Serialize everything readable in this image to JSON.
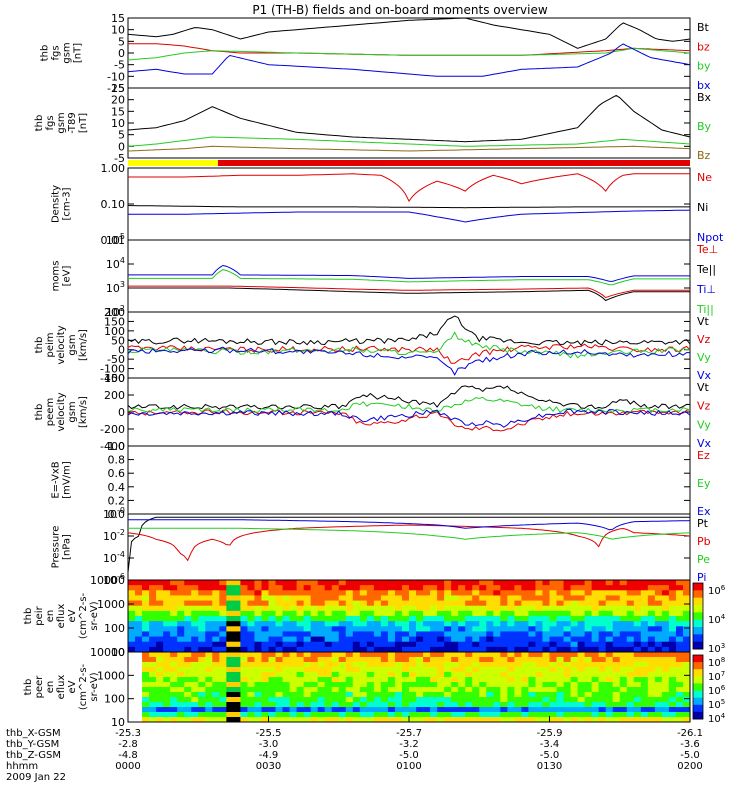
{
  "title": "P1 (TH-B) fields and on-board moments overview",
  "colors": {
    "black": "#000000",
    "red": "#e00000",
    "green": "#22cc22",
    "blue": "#0000dd",
    "yellow": "#ffff00",
    "olive": "#8b6914"
  },
  "chart_data": [
    {
      "type": "line",
      "ylabel": [
        "thb",
        "fgs",
        "gsm",
        "[nT]"
      ],
      "ylim": [
        -15,
        15
      ],
      "yticks": [
        "15",
        "10",
        "5",
        "0",
        "-5",
        "-10",
        "-15"
      ],
      "series": [
        {
          "name": "Bt",
          "color": "black",
          "x": [
            0,
            0.05,
            0.08,
            0.12,
            0.15,
            0.2,
            0.25,
            0.3,
            0.4,
            0.5,
            0.6,
            0.65,
            0.75,
            0.8,
            0.85,
            0.88,
            0.91,
            0.94,
            0.97,
            1.0
          ],
          "values": [
            8,
            7,
            8,
            11,
            10,
            6,
            9,
            10,
            12,
            14,
            15,
            12,
            8,
            2,
            6,
            13,
            10,
            6,
            5,
            6
          ]
        },
        {
          "name": "bz",
          "color": "red",
          "x": [
            0,
            0.05,
            0.1,
            0.15,
            0.2,
            0.3,
            0.5,
            0.7,
            0.85,
            0.9,
            1.0
          ],
          "values": [
            4,
            4,
            3,
            1,
            0,
            0,
            -1,
            -1,
            1,
            2,
            1
          ]
        },
        {
          "name": "by",
          "color": "green",
          "x": [
            0,
            0.05,
            0.1,
            0.15,
            0.3,
            0.5,
            0.7,
            0.85,
            0.9,
            1.0
          ],
          "values": [
            -3,
            -2,
            0,
            1,
            0,
            -1,
            -1,
            0,
            2,
            0
          ]
        },
        {
          "name": "bx",
          "color": "blue",
          "x": [
            0,
            0.05,
            0.1,
            0.15,
            0.18,
            0.25,
            0.4,
            0.55,
            0.63,
            0.7,
            0.8,
            0.86,
            0.88,
            0.93,
            1.0
          ],
          "values": [
            -8,
            -7,
            -9,
            -9,
            -1,
            -5,
            -7,
            -10,
            -10,
            -7,
            -6,
            0,
            4,
            -2,
            -5
          ]
        }
      ]
    },
    {
      "type": "line",
      "ylabel": [
        "thb",
        "fgs",
        "gsm",
        "-T89",
        "[nT]"
      ],
      "ylim": [
        -5,
        25
      ],
      "yticks": [
        "25",
        "20",
        "15",
        "10",
        "5",
        "0",
        "-5"
      ],
      "series": [
        {
          "name": "Bx",
          "color": "black",
          "x": [
            0,
            0.05,
            0.1,
            0.15,
            0.2,
            0.3,
            0.4,
            0.5,
            0.6,
            0.7,
            0.8,
            0.84,
            0.87,
            0.9,
            0.95,
            1.0
          ],
          "values": [
            7,
            8,
            11,
            17,
            12,
            6,
            4,
            3,
            2,
            3,
            8,
            18,
            22,
            15,
            7,
            4
          ]
        },
        {
          "name": "By",
          "color": "green",
          "x": [
            0,
            0.05,
            0.15,
            0.3,
            0.5,
            0.6,
            0.8,
            0.88,
            1.0
          ],
          "values": [
            0,
            1,
            4,
            3,
            1,
            0,
            1,
            3,
            1
          ]
        },
        {
          "name": "Bz",
          "color": "olive",
          "x": [
            0,
            0.1,
            0.15,
            0.3,
            0.5,
            0.7,
            0.9,
            1.0
          ],
          "values": [
            -2,
            -1,
            0,
            -1,
            -2,
            -1,
            0,
            -1
          ]
        }
      ]
    },
    {
      "type": "line",
      "ylabel": [
        "Density",
        "[cm-3]"
      ],
      "yscale": "log",
      "ylim": [
        0.01,
        1.5
      ],
      "yticks": [
        "1.00",
        "0.10",
        "0.01"
      ],
      "series": [
        {
          "name": "Ne",
          "color": "red",
          "x": [
            0,
            0.1,
            0.2,
            0.3,
            0.4,
            0.45,
            0.5,
            0.55,
            0.6,
            0.65,
            0.7,
            0.8,
            0.85,
            0.88,
            0.9,
            1.0
          ],
          "values": [
            0.8,
            0.8,
            0.9,
            0.9,
            1.0,
            0.9,
            0.15,
            0.6,
            0.3,
            0.9,
            0.5,
            1.0,
            0.3,
            0.9,
            1.0,
            1.0
          ]
        },
        {
          "name": "Ni",
          "color": "black",
          "x": [
            0,
            0.2,
            0.4,
            0.6,
            0.8,
            1.0
          ],
          "values": [
            0.11,
            0.1,
            0.1,
            0.095,
            0.1,
            0.1
          ]
        },
        {
          "name": "Npot",
          "color": "blue",
          "x": [
            0,
            0.1,
            0.3,
            0.5,
            0.55,
            0.6,
            0.7,
            0.9,
            1.0
          ],
          "values": [
            0.06,
            0.06,
            0.07,
            0.07,
            0.05,
            0.035,
            0.06,
            0.075,
            0.08
          ]
        }
      ]
    },
    {
      "type": "line",
      "ylabel": [
        "moms",
        "[eV]"
      ],
      "yscale": "log",
      "ylim": [
        100,
        100000
      ],
      "yticks": [
        "10^5",
        "10^4",
        "10^3",
        "10^2"
      ],
      "series": [
        {
          "name": "Te⊥",
          "color": "red",
          "x": [
            0,
            0.15,
            0.18,
            0.4,
            0.5,
            0.7,
            0.82,
            0.85,
            0.9,
            1.0
          ],
          "values": [
            1200,
            1200,
            1200,
            900,
            800,
            900,
            1000,
            400,
            800,
            800
          ]
        },
        {
          "name": "Te||",
          "color": "black",
          "x": [
            0,
            0.15,
            0.18,
            0.4,
            0.5,
            0.7,
            0.82,
            0.85,
            0.9,
            1.0
          ],
          "values": [
            1000,
            1000,
            1000,
            700,
            600,
            700,
            800,
            300,
            700,
            700
          ]
        },
        {
          "name": "Ti⊥",
          "color": "blue",
          "x": [
            0,
            0.15,
            0.17,
            0.2,
            0.4,
            0.5,
            0.7,
            0.82,
            0.86,
            0.9,
            1.0
          ],
          "values": [
            3500,
            3500,
            9000,
            3500,
            3300,
            2500,
            3000,
            3000,
            1800,
            3200,
            3200
          ]
        },
        {
          "name": "Ti||",
          "color": "green",
          "x": [
            0,
            0.15,
            0.17,
            0.2,
            0.4,
            0.5,
            0.7,
            0.82,
            0.86,
            0.9,
            1.0
          ],
          "values": [
            2500,
            2500,
            6000,
            2500,
            2300,
            1800,
            2200,
            2200,
            1300,
            2400,
            2400
          ]
        }
      ]
    },
    {
      "type": "line",
      "ylabel": [
        "thb",
        "peim",
        "velocity",
        "gsm",
        "[km/s]"
      ],
      "ylim": [
        -150,
        200
      ],
      "yticks": [
        "200",
        "150",
        "100",
        "50",
        "0",
        "-50",
        "-100",
        "-150"
      ],
      "series": [
        {
          "name": "Vt",
          "color": "black",
          "x": [
            0,
            0.1,
            0.2,
            0.3,
            0.4,
            0.5,
            0.55,
            0.58,
            0.62,
            0.7,
            0.8,
            0.9,
            1.0
          ],
          "values": [
            40,
            50,
            45,
            40,
            45,
            50,
            90,
            180,
            60,
            40,
            35,
            40,
            45
          ]
        },
        {
          "name": "Vz",
          "color": "red",
          "x": [
            0,
            0.2,
            0.4,
            0.55,
            0.58,
            0.62,
            0.7,
            0.8,
            0.9,
            1.0
          ],
          "values": [
            10,
            0,
            5,
            0,
            -80,
            -20,
            10,
            20,
            0,
            5
          ]
        },
        {
          "name": "Vy",
          "color": "green",
          "x": [
            0,
            0.2,
            0.4,
            0.55,
            0.58,
            0.62,
            0.7,
            0.8,
            0.9,
            1.0
          ],
          "values": [
            0,
            -10,
            0,
            -20,
            80,
            20,
            -10,
            -30,
            -10,
            0
          ]
        },
        {
          "name": "Vx",
          "color": "blue",
          "x": [
            0,
            0.2,
            0.4,
            0.55,
            0.58,
            0.62,
            0.7,
            0.8,
            0.9,
            1.0
          ],
          "values": [
            -10,
            0,
            -20,
            -50,
            -120,
            -60,
            -20,
            -10,
            -30,
            -20
          ]
        }
      ]
    },
    {
      "type": "line",
      "ylabel": [
        "thb",
        "peem",
        "velocity",
        "gsm",
        "[km/s]"
      ],
      "ylim": [
        -400,
        400
      ],
      "yticks": [
        "400",
        "200",
        "0",
        "-200",
        "-400"
      ],
      "series": [
        {
          "name": "Vt",
          "color": "black",
          "x": [
            0,
            0.2,
            0.38,
            0.42,
            0.48,
            0.55,
            0.6,
            0.63,
            0.67,
            0.72,
            0.78,
            0.85,
            0.88,
            0.92,
            1.0
          ],
          "values": [
            60,
            60,
            60,
            200,
            150,
            80,
            300,
            250,
            300,
            150,
            80,
            60,
            150,
            70,
            60
          ]
        },
        {
          "name": "Vz",
          "color": "red",
          "x": [
            0,
            0.2,
            0.38,
            0.42,
            0.48,
            0.55,
            0.6,
            0.63,
            0.67,
            0.72,
            0.78,
            0.85,
            1.0
          ],
          "values": [
            -10,
            0,
            -10,
            -150,
            -100,
            -20,
            -200,
            -180,
            -200,
            -100,
            -20,
            -10,
            0
          ]
        },
        {
          "name": "Vy",
          "color": "green",
          "x": [
            0,
            0.2,
            0.38,
            0.42,
            0.48,
            0.55,
            0.6,
            0.63,
            0.67,
            0.72,
            0.78,
            0.85,
            1.0
          ],
          "values": [
            30,
            20,
            30,
            100,
            80,
            20,
            120,
            150,
            120,
            60,
            20,
            20,
            30
          ]
        },
        {
          "name": "Vx",
          "color": "blue",
          "x": [
            0,
            0.2,
            0.38,
            0.42,
            0.48,
            0.55,
            0.6,
            0.63,
            0.67,
            0.72,
            0.78,
            0.85,
            1.0
          ],
          "values": [
            -20,
            -10,
            -20,
            -100,
            -50,
            10,
            -150,
            -120,
            -150,
            -60,
            10,
            0,
            -20
          ]
        }
      ]
    },
    {
      "type": "line",
      "ylabel": [
        "E=-VxB",
        "[mV/m]"
      ],
      "ylim": [
        0,
        1
      ],
      "yticks": [
        "1.0",
        "0.8",
        "0.6",
        "0.4",
        "0.2",
        "0.0"
      ],
      "series": [
        {
          "name": "Ez",
          "color": "red",
          "x": [],
          "values": []
        },
        {
          "name": "Ey",
          "color": "green",
          "x": [],
          "values": []
        },
        {
          "name": "Ex",
          "color": "blue",
          "x": [],
          "values": []
        }
      ]
    },
    {
      "type": "line",
      "ylabel": [
        "Pressure",
        "[nPa]"
      ],
      "yscale": "log",
      "ylim": [
        1e-06,
        1
      ],
      "yticks": [
        "10^-0",
        "10^-2",
        "10^-4",
        "10^-6"
      ],
      "series": [
        {
          "name": "Pt",
          "color": "black",
          "x": [
            0,
            0.02,
            0.05,
            0.1,
            0.5,
            1.0
          ],
          "values": [
            5e-06,
            0.01,
            0.5,
            0.5,
            0.5,
            0.5
          ]
        },
        {
          "name": "Pb",
          "color": "red",
          "x": [
            0,
            0.05,
            0.09,
            0.11,
            0.15,
            0.18,
            0.3,
            0.5,
            0.7,
            0.8,
            0.84,
            0.88,
            0.9,
            1.0
          ],
          "values": [
            0.02,
            0.005,
            0.0003,
            5e-06,
            0.005,
            0.001,
            0.05,
            0.1,
            0.05,
            0.01,
            0.0005,
            0.05,
            0.02,
            0.01
          ]
        },
        {
          "name": "Pe",
          "color": "green",
          "x": [
            0,
            0.2,
            0.4,
            0.55,
            0.6,
            0.8,
            0.86,
            1.0
          ],
          "values": [
            0.05,
            0.05,
            0.03,
            0.01,
            0.005,
            0.02,
            0.005,
            0.02
          ]
        },
        {
          "name": "Pi",
          "color": "blue",
          "x": [
            0,
            0.2,
            0.4,
            0.55,
            0.6,
            0.8,
            0.86,
            0.9,
            1.0
          ],
          "values": [
            0.3,
            0.3,
            0.2,
            0.1,
            0.05,
            0.15,
            0.03,
            0.2,
            0.25
          ]
        }
      ]
    },
    {
      "type": "heatmap",
      "ylabel": [
        "thb",
        "peir",
        "en",
        "eflux",
        "eV",
        "(cm^2-s-",
        "sr-eV)"
      ],
      "ylim": [
        10,
        10000
      ],
      "yticks": [
        "10000",
        "1000",
        "100",
        "10"
      ],
      "colorbar": {
        "min_exp": 3,
        "max_exp": 6,
        "labels": [
          "10^6",
          "10^4",
          "10^3"
        ]
      }
    },
    {
      "type": "heatmap",
      "ylabel": [
        "thb",
        "peer",
        "en",
        "eflux",
        "eV",
        "(cm^2-s-",
        "sr-eV)"
      ],
      "ylim": [
        10,
        10000
      ],
      "yticks": [
        "10000",
        "1000",
        "100",
        "10"
      ],
      "colorbar": {
        "min_exp": 4,
        "max_exp": 8,
        "labels": [
          "10^8",
          "10^7",
          "10^6",
          "10^5",
          "10^4"
        ]
      }
    }
  ],
  "mode_bar": {
    "colors": [
      "yellow",
      "red"
    ],
    "split": 0.16
  },
  "x_axis": {
    "labels": [
      "thb_X-GSM",
      "thb_Y-GSM",
      "thb_Z-GSM",
      "hhmm",
      "2009 Jan 22"
    ],
    "rows": [
      [
        "-25.3",
        "-25.5",
        "-25.7",
        "-25.9",
        "-26.1"
      ],
      [
        "-2.8",
        "-3.0",
        "-3.2",
        "-3.4",
        "-3.6"
      ],
      [
        "-4.8",
        "-4.9",
        "-5.0",
        "-5.0",
        "-5.0"
      ],
      [
        "0000",
        "0030",
        "0100",
        "0130",
        "0200"
      ]
    ]
  }
}
